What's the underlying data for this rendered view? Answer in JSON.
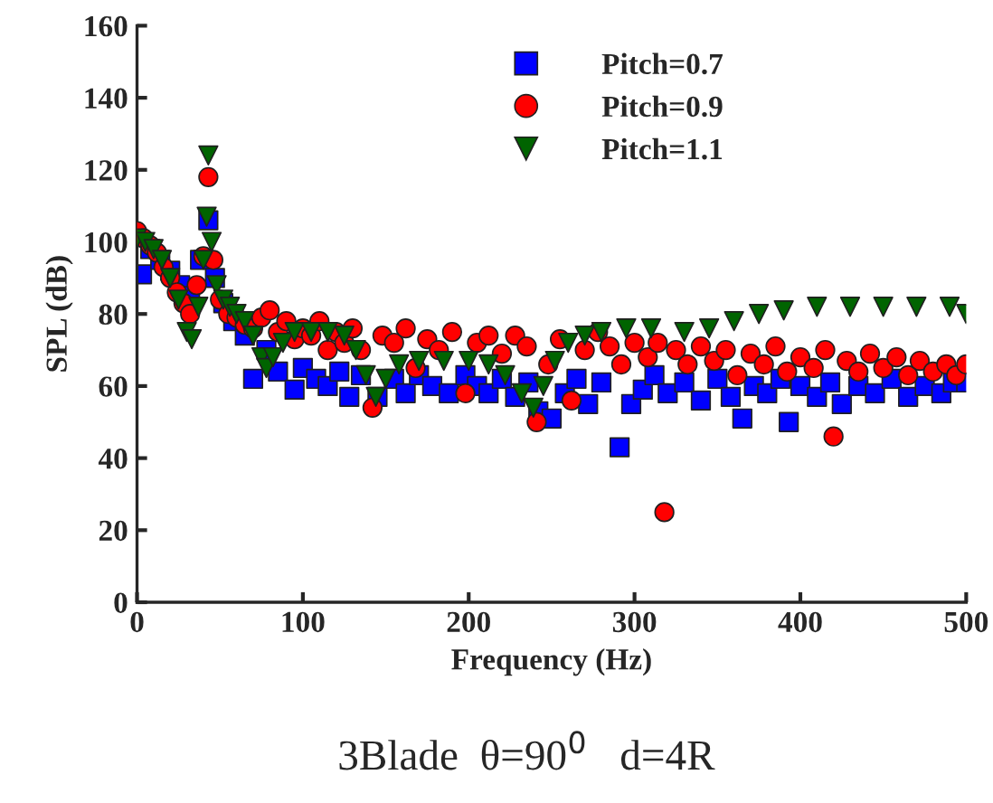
{
  "chart_data": {
    "type": "scatter",
    "title": "3Blade  θ=90$^{0}$   d=4R",
    "xlabel": "Frequency (Hz)",
    "ylabel": "SPL (dB)",
    "xlim": [
      0,
      500
    ],
    "xticks": [
      0,
      100,
      200,
      300,
      400,
      500
    ],
    "ylim": [
      0,
      160
    ],
    "yticks": [
      0,
      20,
      40,
      60,
      80,
      100,
      120,
      140,
      160
    ],
    "grid": false,
    "legend": "top",
    "series": [
      {
        "name": "Pitch=0.7",
        "color": "#0000ff",
        "marker": "square",
        "x": [
          3,
          8,
          14,
          20,
          26,
          32,
          38,
          43,
          47,
          52,
          58,
          65,
          70,
          78,
          85,
          95,
          100,
          108,
          115,
          122,
          128,
          135,
          145,
          155,
          162,
          170,
          178,
          188,
          198,
          205,
          212,
          220,
          228,
          236,
          242,
          250,
          258,
          265,
          272,
          280,
          291,
          298,
          305,
          312,
          320,
          330,
          340,
          350,
          358,
          365,
          372,
          380,
          388,
          393,
          400,
          410,
          418,
          425,
          435,
          445,
          455,
          465,
          475,
          485,
          492,
          500
        ],
        "values": [
          91,
          98,
          95,
          92,
          88,
          85,
          95,
          106,
          90,
          83,
          78,
          74,
          62,
          70,
          64,
          59,
          65,
          62,
          60,
          64,
          57,
          63,
          57,
          62,
          58,
          63,
          60,
          58,
          63,
          60,
          58,
          62,
          57,
          61,
          53,
          51,
          58,
          62,
          55,
          61,
          43,
          55,
          59,
          63,
          58,
          61,
          56,
          62,
          57,
          51,
          60,
          58,
          62,
          50,
          60,
          57,
          61,
          55,
          60,
          58,
          62,
          57,
          60,
          58,
          61,
          61
        ]
      },
      {
        "name": "Pitch=0.9",
        "color": "#ff0000",
        "marker": "circle",
        "x": [
          0,
          4,
          8,
          12,
          16,
          20,
          24,
          28,
          32,
          36,
          40,
          43,
          46,
          50,
          55,
          60,
          65,
          70,
          75,
          80,
          85,
          90,
          95,
          100,
          105,
          110,
          115,
          120,
          125,
          130,
          135,
          142,
          148,
          155,
          162,
          168,
          175,
          182,
          190,
          198,
          205,
          212,
          220,
          228,
          235,
          241,
          248,
          255,
          262,
          270,
          278,
          285,
          292,
          300,
          308,
          314,
          318,
          325,
          332,
          340,
          348,
          355,
          362,
          370,
          378,
          385,
          392,
          400,
          408,
          415,
          420,
          428,
          435,
          442,
          450,
          458,
          465,
          472,
          480,
          488,
          494,
          500
        ],
        "values": [
          103,
          101,
          99,
          97,
          93,
          90,
          86,
          83,
          80,
          88,
          96,
          118,
          95,
          84,
          80,
          79,
          77,
          76,
          79,
          81,
          75,
          78,
          73,
          76,
          74,
          78,
          70,
          75,
          72,
          76,
          70,
          54,
          74,
          72,
          76,
          65,
          73,
          70,
          75,
          58,
          72,
          74,
          69,
          74,
          71,
          50,
          66,
          73,
          56,
          70,
          75,
          71,
          66,
          72,
          68,
          72,
          25,
          70,
          66,
          71,
          67,
          70,
          63,
          69,
          66,
          71,
          64,
          68,
          65,
          70,
          46,
          67,
          64,
          69,
          65,
          68,
          63,
          67,
          64,
          66,
          63,
          66
        ]
      },
      {
        "name": "Pitch=1.1",
        "color": "#006400",
        "marker": "triangle",
        "x": [
          0,
          5,
          10,
          15,
          20,
          25,
          30,
          33,
          37,
          40,
          42,
          43,
          45,
          48,
          52,
          56,
          60,
          65,
          70,
          75,
          78,
          82,
          88,
          95,
          105,
          115,
          125,
          132,
          138,
          144,
          150,
          158,
          170,
          185,
          200,
          212,
          222,
          232,
          239,
          245,
          252,
          260,
          270,
          280,
          295,
          310,
          330,
          345,
          360,
          375,
          390,
          410,
          430,
          450,
          470,
          490,
          500
        ],
        "values": [
          101,
          100,
          98,
          95,
          90,
          84,
          75,
          73,
          82,
          95,
          107,
          124,
          100,
          88,
          84,
          82,
          80,
          78,
          74,
          68,
          65,
          68,
          72,
          75,
          75,
          75,
          74,
          70,
          63,
          57,
          62,
          66,
          67,
          67,
          67,
          66,
          63,
          58,
          54,
          60,
          67,
          72,
          74,
          75,
          76,
          76,
          75,
          76,
          78,
          80,
          81,
          82,
          82,
          82,
          82,
          82,
          80
        ]
      }
    ]
  }
}
